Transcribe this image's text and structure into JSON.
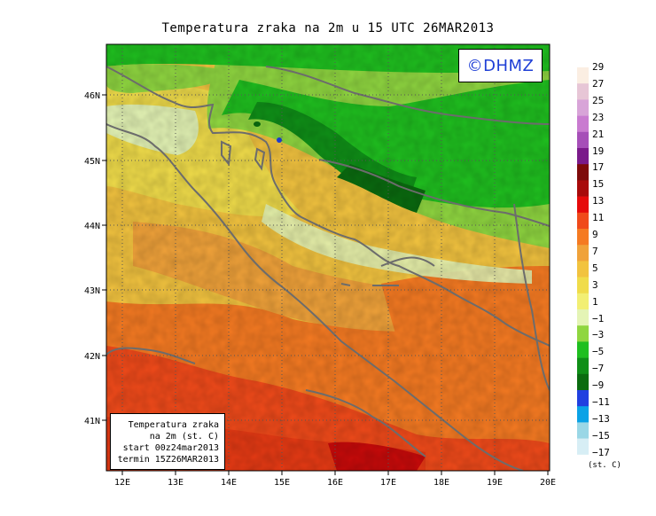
{
  "title": "Temperatura zraka na 2m u 15 UTC 26MAR2013",
  "logo": "©DHMZ",
  "info_box": {
    "line1": "Temperatura zraka",
    "line2": "na 2m (st. C)",
    "line3": "start 00z24mar2013",
    "line4": "termin 15Z26MAR2013"
  },
  "x_ticks": [
    "12E",
    "13E",
    "14E",
    "15E",
    "16E",
    "17E",
    "18E",
    "19E",
    "20E"
  ],
  "y_ticks": [
    "41N",
    "42N",
    "43N",
    "44N",
    "45N",
    "46N"
  ],
  "colorbar": {
    "unit": "(st. C)",
    "labels": [
      "29",
      "27",
      "25",
      "23",
      "21",
      "19",
      "17",
      "15",
      "13",
      "11",
      "9",
      "7",
      "5",
      "3",
      "1",
      "−1",
      "−3",
      "−5",
      "−7",
      "−9",
      "−11",
      "−13",
      "−15",
      "−17"
    ],
    "colors": [
      "#fbeee2",
      "#e7c6d6",
      "#d8a4d8",
      "#c97bd0",
      "#a64fb8",
      "#7a1a8a",
      "#7e0a0a",
      "#a80a0a",
      "#e60a0a",
      "#f04a1a",
      "#f57a22",
      "#f0a23a",
      "#f2c33f",
      "#f0dc4a",
      "#f2ef73",
      "#e4f4b5",
      "#8fd640",
      "#1fbf1f",
      "#0f8f17",
      "#0a6b0f",
      "#2040e0",
      "#0aa2e6",
      "#9ad7e6",
      "#d7eef5",
      "#f5fbfd"
    ]
  }
}
